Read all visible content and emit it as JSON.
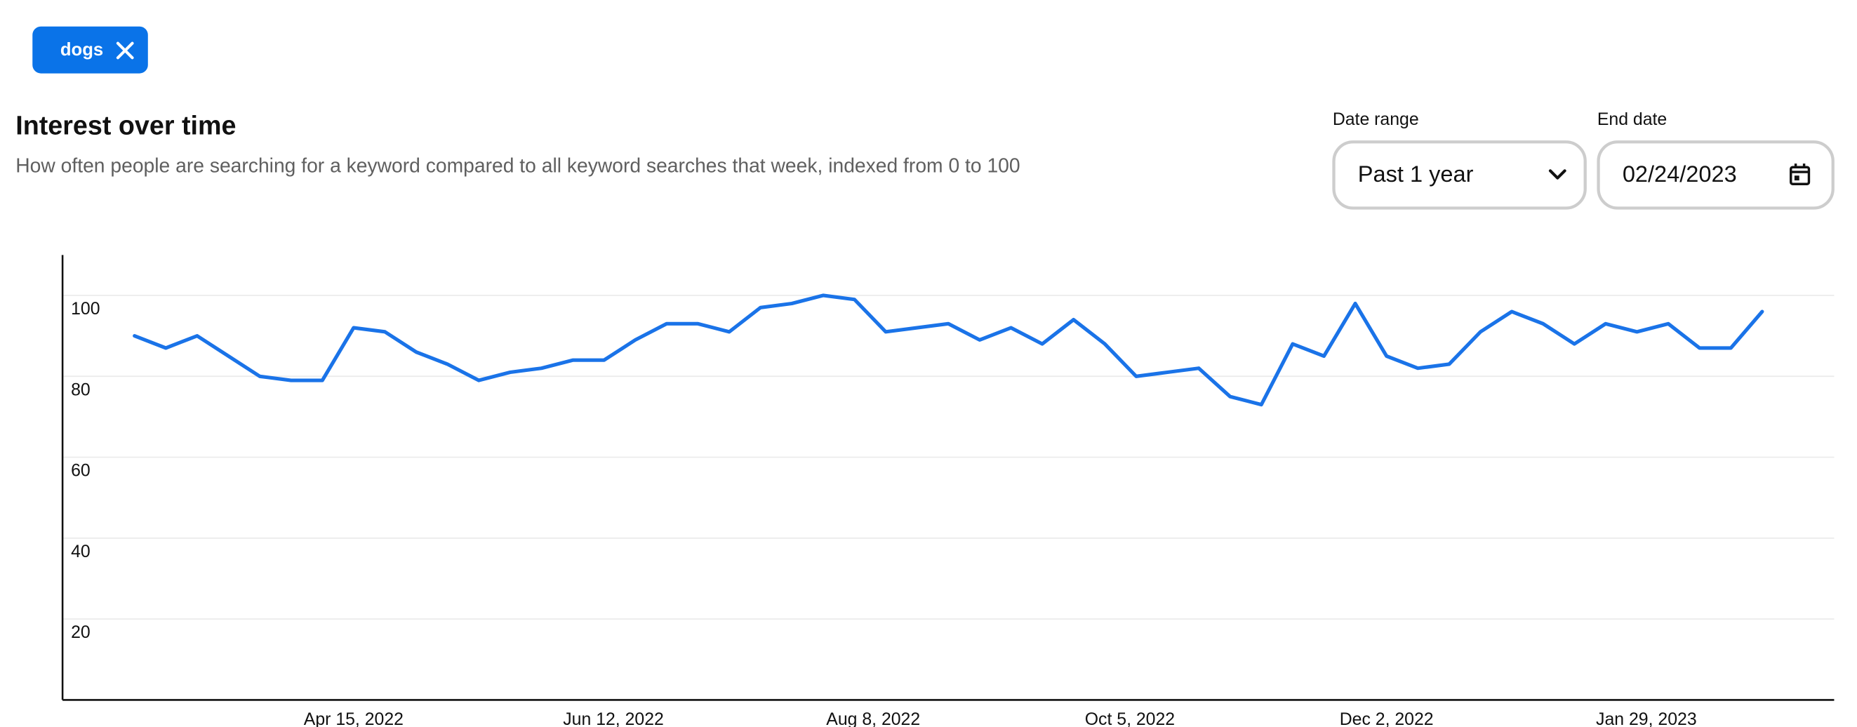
{
  "chip": {
    "label": "dogs"
  },
  "controls": {
    "date_range_label": "Date range",
    "date_range_value": "Past 1 year",
    "end_date_label": "End date",
    "end_date_value": "02/24/2023"
  },
  "chart_data": {
    "type": "line",
    "title": "Interest over time",
    "subtitle": "How often people are searching for a keyword compared to all keyword searches that week, indexed from 0 to 100",
    "series": [
      {
        "name": "dogs",
        "color": "#1a73e8",
        "values": [
          90,
          87,
          90,
          85,
          80,
          79,
          79,
          92,
          91,
          86,
          83,
          79,
          81,
          82,
          84,
          84,
          89,
          93,
          93,
          91,
          97,
          98,
          100,
          99,
          91,
          92,
          93,
          89,
          92,
          88,
          94,
          88,
          80,
          81,
          82,
          75,
          73,
          88,
          85,
          98,
          85,
          82,
          83,
          91,
          96,
          93,
          88,
          93,
          91,
          93,
          87,
          87,
          96
        ]
      }
    ],
    "xlim": [
      -2.3,
      54.3
    ],
    "xticks": [
      {
        "value": 7,
        "label": "Apr 15, 2022"
      },
      {
        "value": 15.3,
        "label": "Jun 12, 2022"
      },
      {
        "value": 23.6,
        "label": "Aug 8, 2022"
      },
      {
        "value": 31.8,
        "label": "Oct 5, 2022"
      },
      {
        "value": 40,
        "label": "Dec 2, 2022"
      },
      {
        "value": 48.3,
        "label": "Jan 29, 2023"
      }
    ],
    "ylim": [
      0,
      110
    ],
    "yticks": [
      20,
      40,
      60,
      80,
      100
    ],
    "grid": true
  }
}
